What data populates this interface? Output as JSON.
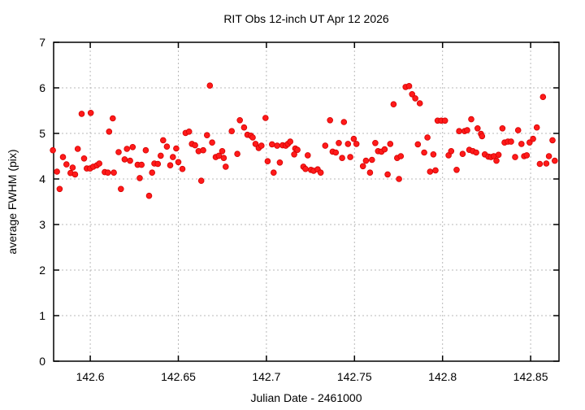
{
  "chart_data": {
    "type": "scatter",
    "title": "RIT Obs 12-inch UT Apr 12 2026",
    "xlabel": "Julian Date - 2461000",
    "ylabel": "average FWHM (pix)",
    "xlim": [
      142.5792,
      142.8661
    ],
    "ylim": [
      0,
      7
    ],
    "xticks": [
      142.6,
      142.65,
      142.7,
      142.75,
      142.8,
      142.85
    ],
    "xtick_labels": [
      "142.6",
      "142.65",
      "142.7",
      "142.75",
      "142.8",
      "142.85"
    ],
    "yticks": [
      0,
      1,
      2,
      3,
      4,
      5,
      6,
      7
    ],
    "ytick_labels": [
      "0",
      "1",
      "2",
      "3",
      "4",
      "5",
      "6",
      "7"
    ],
    "grid": true,
    "legend_position": "none",
    "marker_color": "#ff1a1a",
    "marker_edge_color": "#d40000",
    "grid_color": "#b9b9b9",
    "axis_color": "#000000",
    "series": [
      {
        "name": "average FWHM",
        "points": [
          [
            142.5788,
            4.63
          ],
          [
            142.5811,
            4.16
          ],
          [
            142.5826,
            3.78
          ],
          [
            142.5845,
            4.48
          ],
          [
            142.5865,
            4.32
          ],
          [
            142.5888,
            4.13
          ],
          [
            142.59,
            4.25
          ],
          [
            142.5914,
            4.1
          ],
          [
            142.5929,
            4.66
          ],
          [
            142.5951,
            5.43
          ],
          [
            142.5965,
            4.45
          ],
          [
            142.598,
            4.23
          ],
          [
            142.5999,
            4.23
          ],
          [
            142.6003,
            5.45
          ],
          [
            142.6017,
            4.27
          ],
          [
            142.6038,
            4.3
          ],
          [
            142.6051,
            4.34
          ],
          [
            142.6082,
            4.15
          ],
          [
            142.61,
            4.14
          ],
          [
            142.6107,
            5.04
          ],
          [
            142.6128,
            5.33
          ],
          [
            142.6134,
            4.14
          ],
          [
            142.6161,
            4.59
          ],
          [
            142.6174,
            3.78
          ],
          [
            142.6195,
            4.43
          ],
          [
            142.6208,
            4.66
          ],
          [
            142.6226,
            4.4
          ],
          [
            142.6241,
            4.7
          ],
          [
            142.6269,
            4.31
          ],
          [
            142.6281,
            4.02
          ],
          [
            142.6291,
            4.31
          ],
          [
            142.6315,
            4.63
          ],
          [
            142.6334,
            3.63
          ],
          [
            142.6351,
            4.14
          ],
          [
            142.6364,
            4.34
          ],
          [
            142.6384,
            4.33
          ],
          [
            142.64,
            4.51
          ],
          [
            142.6414,
            4.85
          ],
          [
            142.6435,
            4.71
          ],
          [
            142.6454,
            4.3
          ],
          [
            142.6469,
            4.48
          ],
          [
            142.6488,
            4.67
          ],
          [
            142.65,
            4.37
          ],
          [
            142.6523,
            4.22
          ],
          [
            142.6541,
            5.01
          ],
          [
            142.6561,
            5.04
          ],
          [
            142.6577,
            4.77
          ],
          [
            142.6595,
            4.74
          ],
          [
            142.6615,
            4.61
          ],
          [
            142.663,
            3.96
          ],
          [
            142.6641,
            4.63
          ],
          [
            142.6663,
            4.96
          ],
          [
            142.6679,
            6.05
          ],
          [
            142.6692,
            4.8
          ],
          [
            142.6712,
            4.48
          ],
          [
            142.673,
            4.51
          ],
          [
            142.6749,
            4.61
          ],
          [
            142.6758,
            4.46
          ],
          [
            142.6769,
            4.27
          ],
          [
            142.6803,
            5.05
          ],
          [
            142.6835,
            4.55
          ],
          [
            142.6849,
            5.29
          ],
          [
            142.6873,
            5.13
          ],
          [
            142.6892,
            4.97
          ],
          [
            142.6912,
            4.95
          ],
          [
            142.6922,
            4.91
          ],
          [
            142.6938,
            4.77
          ],
          [
            142.6956,
            4.68
          ],
          [
            142.6972,
            4.73
          ],
          [
            142.6995,
            5.34
          ],
          [
            142.7007,
            4.39
          ],
          [
            142.7032,
            4.76
          ],
          [
            142.7041,
            4.14
          ],
          [
            142.7061,
            4.73
          ],
          [
            142.7076,
            4.36
          ],
          [
            142.7092,
            4.74
          ],
          [
            142.711,
            4.73
          ],
          [
            142.7122,
            4.77
          ],
          [
            142.7135,
            4.82
          ],
          [
            142.7158,
            4.54
          ],
          [
            142.7164,
            4.67
          ],
          [
            142.7176,
            4.64
          ],
          [
            142.721,
            4.27
          ],
          [
            142.7222,
            4.22
          ],
          [
            142.7235,
            4.52
          ],
          [
            142.7253,
            4.2
          ],
          [
            142.7268,
            4.18
          ],
          [
            142.7291,
            4.21
          ],
          [
            142.7308,
            4.14
          ],
          [
            142.7334,
            4.73
          ],
          [
            142.7361,
            5.29
          ],
          [
            142.7376,
            4.6
          ],
          [
            142.7394,
            4.58
          ],
          [
            142.7411,
            4.79
          ],
          [
            142.743,
            4.46
          ],
          [
            142.744,
            5.25
          ],
          [
            142.7463,
            4.77
          ],
          [
            142.7476,
            4.48
          ],
          [
            142.7496,
            4.88
          ],
          [
            142.7511,
            4.77
          ],
          [
            142.7548,
            4.28
          ],
          [
            142.7565,
            4.4
          ],
          [
            142.7588,
            4.14
          ],
          [
            142.7599,
            4.42
          ],
          [
            142.7618,
            4.79
          ],
          [
            142.7634,
            4.61
          ],
          [
            142.7653,
            4.6
          ],
          [
            142.7671,
            4.65
          ],
          [
            142.7688,
            4.1
          ],
          [
            142.7703,
            4.77
          ],
          [
            142.7722,
            5.64
          ],
          [
            142.7742,
            4.46
          ],
          [
            142.7753,
            4.0
          ],
          [
            142.7763,
            4.5
          ],
          [
            142.779,
            6.02
          ],
          [
            142.781,
            6.04
          ],
          [
            142.7827,
            5.86
          ],
          [
            142.7845,
            5.77
          ],
          [
            142.786,
            4.76
          ],
          [
            142.7871,
            5.66
          ],
          [
            142.7896,
            4.58
          ],
          [
            142.7914,
            4.91
          ],
          [
            142.7929,
            4.16
          ],
          [
            142.7948,
            4.54
          ],
          [
            142.796,
            4.19
          ],
          [
            142.7972,
            5.28
          ],
          [
            142.7993,
            5.28
          ],
          [
            142.8014,
            5.28
          ],
          [
            142.8034,
            4.52
          ],
          [
            142.8049,
            4.61
          ],
          [
            142.808,
            4.2
          ],
          [
            142.8094,
            5.05
          ],
          [
            142.8125,
            5.05
          ],
          [
            142.8114,
            4.55
          ],
          [
            142.814,
            5.07
          ],
          [
            142.8152,
            4.64
          ],
          [
            142.8163,
            5.31
          ],
          [
            142.8172,
            4.61
          ],
          [
            142.8191,
            4.58
          ],
          [
            142.8199,
            5.11
          ],
          [
            142.8218,
            4.99
          ],
          [
            142.8224,
            4.94
          ],
          [
            142.824,
            4.54
          ],
          [
            142.826,
            4.49
          ],
          [
            142.8275,
            4.48
          ],
          [
            142.8291,
            4.5
          ],
          [
            142.8306,
            4.4
          ],
          [
            142.8318,
            4.53
          ],
          [
            142.834,
            5.11
          ],
          [
            142.8352,
            4.8
          ],
          [
            142.8371,
            4.82
          ],
          [
            142.8389,
            4.82
          ],
          [
            142.8412,
            4.48
          ],
          [
            142.8429,
            5.07
          ],
          [
            142.8448,
            4.77
          ],
          [
            142.8463,
            4.5
          ],
          [
            142.8478,
            4.52
          ],
          [
            142.8494,
            4.8
          ],
          [
            142.8514,
            4.88
          ],
          [
            142.8535,
            5.13
          ],
          [
            142.8552,
            4.33
          ],
          [
            142.857,
            5.8
          ],
          [
            142.8589,
            4.34
          ],
          [
            142.8604,
            4.5
          ],
          [
            142.8624,
            4.85
          ],
          [
            142.8637,
            4.4
          ]
        ]
      }
    ]
  }
}
